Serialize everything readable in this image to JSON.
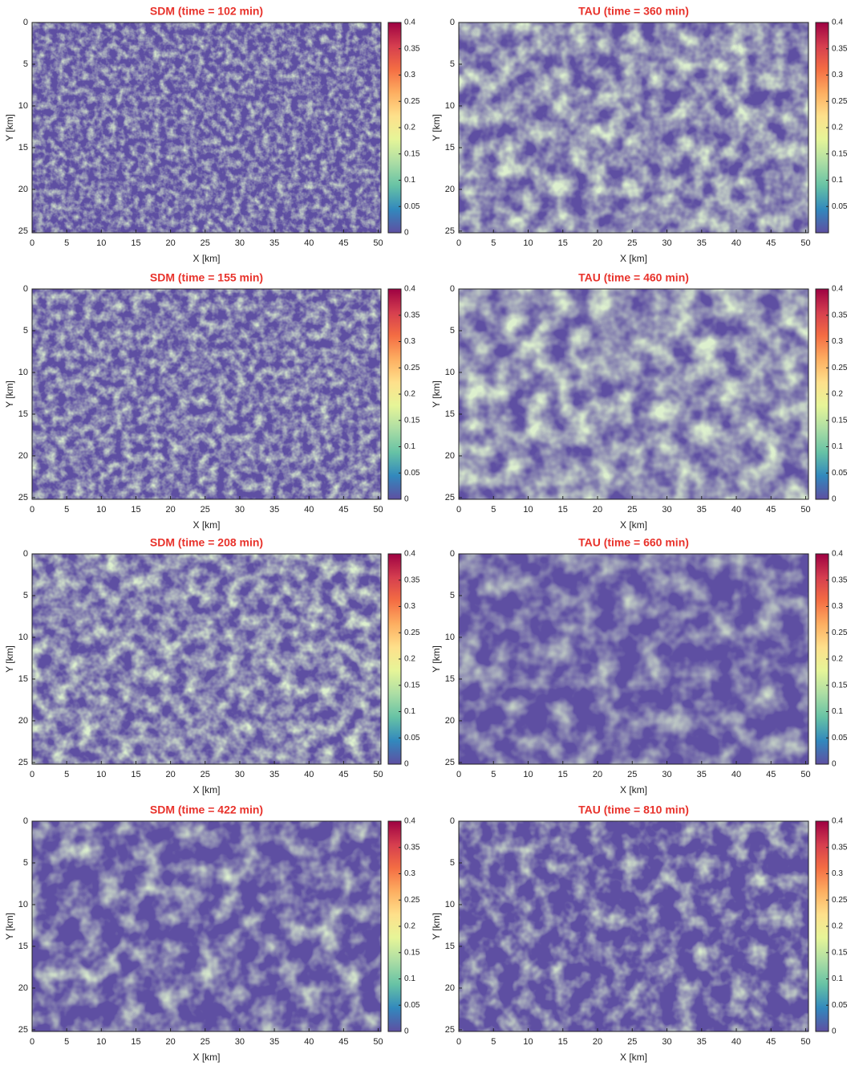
{
  "chart_data": [
    {
      "type": "heatmap",
      "title": "SDM (time = 102 min)",
      "xlabel": "X [km]",
      "ylabel": "Y [km]",
      "xlim": [
        0,
        50.4
      ],
      "ylim": [
        0,
        25.2
      ],
      "y_inverted": true,
      "xticks": [
        0,
        5,
        10,
        15,
        20,
        25,
        30,
        35,
        40,
        45,
        50
      ],
      "yticks": [
        0,
        5,
        10,
        15,
        20,
        25
      ],
      "colorbar": {
        "lim": [
          0,
          0.4
        ],
        "ticks": [
          0,
          0.05,
          0.1,
          0.15,
          0.2,
          0.25,
          0.3,
          0.35,
          0.4
        ],
        "colors": [
          "#5e4fa2",
          "#3288bd",
          "#66c2a5",
          "#abdda4",
          "#e6f598",
          "#fee08b",
          "#fdae61",
          "#f46d43",
          "#d53e4f",
          "#9e0142"
        ]
      }
    },
    {
      "type": "heatmap",
      "title": "TAU (time = 360 min)",
      "xlabel": "X [km]",
      "ylabel": "Y [km]",
      "xlim": [
        0,
        50.4
      ],
      "ylim": [
        0,
        25.2
      ],
      "y_inverted": true,
      "xticks": [
        0,
        5,
        10,
        15,
        20,
        25,
        30,
        35,
        40,
        45,
        50
      ],
      "yticks": [
        0,
        5,
        10,
        15,
        20,
        25
      ],
      "colorbar": {
        "lim": [
          0,
          0.4
        ],
        "ticks": [
          0.05,
          0.1,
          0.15,
          0.2,
          0.25,
          0.3,
          0.35,
          0.4
        ],
        "colors": [
          "#5e4fa2",
          "#3288bd",
          "#66c2a5",
          "#abdda4",
          "#e6f598",
          "#fee08b",
          "#fdae61",
          "#f46d43",
          "#d53e4f",
          "#9e0142"
        ]
      }
    },
    {
      "type": "heatmap",
      "title": "SDM (time = 155 min)",
      "xlabel": "X [km]",
      "ylabel": "Y [km]",
      "xlim": [
        0,
        50.4
      ],
      "ylim": [
        0,
        25.2
      ],
      "y_inverted": true,
      "xticks": [
        0,
        5,
        10,
        15,
        20,
        25,
        30,
        35,
        40,
        45,
        50
      ],
      "yticks": [
        0,
        5,
        10,
        15,
        20,
        25
      ],
      "colorbar": {
        "lim": [
          0,
          0.4
        ],
        "ticks": [
          0,
          0.05,
          0.1,
          0.15,
          0.2,
          0.25,
          0.3,
          0.35,
          0.4
        ],
        "colors": [
          "#5e4fa2",
          "#3288bd",
          "#66c2a5",
          "#abdda4",
          "#e6f598",
          "#fee08b",
          "#fdae61",
          "#f46d43",
          "#d53e4f",
          "#9e0142"
        ]
      }
    },
    {
      "type": "heatmap",
      "title": "TAU (time = 460 min)",
      "xlabel": "X [km]",
      "ylabel": "Y [km]",
      "xlim": [
        0,
        50.4
      ],
      "ylim": [
        0,
        25.2
      ],
      "y_inverted": true,
      "xticks": [
        0,
        5,
        10,
        15,
        20,
        25,
        30,
        35,
        40,
        45,
        50
      ],
      "yticks": [
        0,
        5,
        10,
        15,
        20,
        25
      ],
      "colorbar": {
        "lim": [
          0,
          0.4
        ],
        "ticks": [
          0,
          0.05,
          0.1,
          0.15,
          0.2,
          0.25,
          0.3,
          0.35,
          0.4
        ],
        "colors": [
          "#5e4fa2",
          "#3288bd",
          "#66c2a5",
          "#abdda4",
          "#e6f598",
          "#fee08b",
          "#fdae61",
          "#f46d43",
          "#d53e4f",
          "#9e0142"
        ]
      }
    },
    {
      "type": "heatmap",
      "title": "SDM (time = 208 min)",
      "xlabel": "X [km]",
      "ylabel": "Y [km]",
      "xlim": [
        0,
        50.4
      ],
      "ylim": [
        0,
        25.2
      ],
      "y_inverted": true,
      "xticks": [
        0,
        5,
        10,
        15,
        20,
        25,
        30,
        35,
        40,
        45,
        50
      ],
      "yticks": [
        0,
        5,
        10,
        15,
        20,
        25
      ],
      "colorbar": {
        "lim": [
          0,
          0.4
        ],
        "ticks": [
          0,
          0.05,
          0.1,
          0.15,
          0.2,
          0.25,
          0.3,
          0.35,
          0.4
        ],
        "colors": [
          "#5e4fa2",
          "#3288bd",
          "#66c2a5",
          "#abdda4",
          "#e6f598",
          "#fee08b",
          "#fdae61",
          "#f46d43",
          "#d53e4f",
          "#9e0142"
        ]
      }
    },
    {
      "type": "heatmap",
      "title": "TAU (time = 660 min)",
      "xlabel": "X [km]",
      "ylabel": "Y [km]",
      "xlim": [
        0,
        50.4
      ],
      "ylim": [
        0,
        25.2
      ],
      "y_inverted": true,
      "xticks": [
        0,
        5,
        10,
        15,
        20,
        25,
        30,
        35,
        40,
        45,
        50
      ],
      "yticks": [
        0,
        5,
        10,
        15,
        20,
        25
      ],
      "colorbar": {
        "lim": [
          0,
          0.4
        ],
        "ticks": [
          0,
          0.05,
          0.1,
          0.15,
          0.2,
          0.25,
          0.3,
          0.35,
          0.4
        ],
        "colors": [
          "#5e4fa2",
          "#3288bd",
          "#66c2a5",
          "#abdda4",
          "#e6f598",
          "#fee08b",
          "#fdae61",
          "#f46d43",
          "#d53e4f",
          "#9e0142"
        ]
      }
    },
    {
      "type": "heatmap",
      "title": "SDM (time = 422 min)",
      "xlabel": "X [km]",
      "ylabel": "Y [km]",
      "xlim": [
        0,
        50.4
      ],
      "ylim": [
        0,
        25.2
      ],
      "y_inverted": true,
      "xticks": [
        0,
        5,
        10,
        15,
        20,
        25,
        30,
        35,
        40,
        45,
        50
      ],
      "yticks": [
        0,
        5,
        10,
        15,
        20,
        25
      ],
      "colorbar": {
        "lim": [
          0,
          0.4
        ],
        "ticks": [
          0,
          0.05,
          0.1,
          0.15,
          0.2,
          0.25,
          0.3,
          0.35,
          0.4
        ],
        "colors": [
          "#5e4fa2",
          "#3288bd",
          "#66c2a5",
          "#abdda4",
          "#e6f598",
          "#fee08b",
          "#fdae61",
          "#f46d43",
          "#d53e4f",
          "#9e0142"
        ]
      }
    },
    {
      "type": "heatmap",
      "title": "TAU (time = 810 min)",
      "xlabel": "X [km]",
      "ylabel": "Y [km]",
      "xlim": [
        0,
        50.4
      ],
      "ylim": [
        0,
        25.2
      ],
      "y_inverted": true,
      "xticks": [
        0,
        5,
        10,
        15,
        20,
        25,
        30,
        35,
        40,
        45,
        50
      ],
      "yticks": [
        0,
        5,
        10,
        15,
        20,
        25
      ],
      "colorbar": {
        "lim": [
          0,
          0.4
        ],
        "ticks": [
          0,
          0.05,
          0.1,
          0.15,
          0.2,
          0.25,
          0.3,
          0.35,
          0.4
        ],
        "colors": [
          "#5e4fa2",
          "#3288bd",
          "#66c2a5",
          "#abdda4",
          "#e6f598",
          "#fee08b",
          "#fdae61",
          "#f46d43",
          "#d53e4f",
          "#9e0142"
        ]
      }
    }
  ]
}
